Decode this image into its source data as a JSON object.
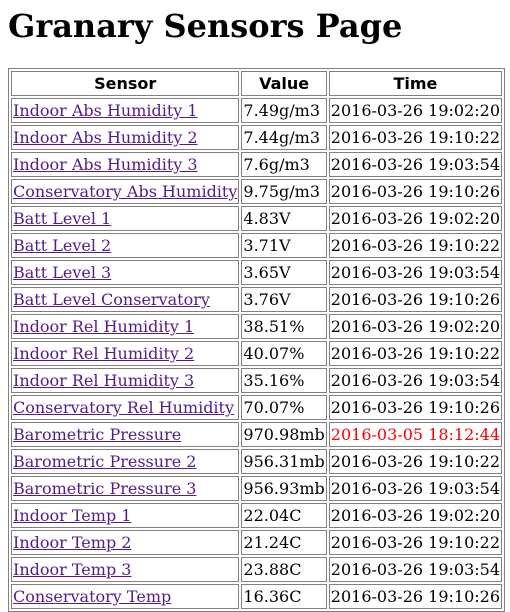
{
  "page": {
    "title": "Granary Sensors Page"
  },
  "table": {
    "headers": [
      "Sensor",
      "Value",
      "Time"
    ],
    "rows": [
      {
        "sensor": "Indoor Abs Humidity 1",
        "value": "7.49g/m3",
        "time": "2016-03-26 19:02:20",
        "stale": false
      },
      {
        "sensor": "Indoor Abs Humidity 2",
        "value": "7.44g/m3",
        "time": "2016-03-26 19:10:22",
        "stale": false
      },
      {
        "sensor": "Indoor Abs Humidity 3",
        "value": "7.6g/m3",
        "time": "2016-03-26 19:03:54",
        "stale": false
      },
      {
        "sensor": "Conservatory Abs Humidity",
        "value": "9.75g/m3",
        "time": "2016-03-26 19:10:26",
        "stale": false
      },
      {
        "sensor": "Batt Level 1",
        "value": "4.83V",
        "time": "2016-03-26 19:02:20",
        "stale": false
      },
      {
        "sensor": "Batt Level 2",
        "value": "3.71V",
        "time": "2016-03-26 19:10:22",
        "stale": false
      },
      {
        "sensor": "Batt Level 3",
        "value": "3.65V",
        "time": "2016-03-26 19:03:54",
        "stale": false
      },
      {
        "sensor": "Batt Level Conservatory",
        "value": "3.76V",
        "time": "2016-03-26 19:10:26",
        "stale": false
      },
      {
        "sensor": "Indoor Rel Humidity 1",
        "value": "38.51%",
        "time": "2016-03-26 19:02:20",
        "stale": false
      },
      {
        "sensor": "Indoor Rel Humidity 2",
        "value": "40.07%",
        "time": "2016-03-26 19:10:22",
        "stale": false
      },
      {
        "sensor": "Indoor Rel Humidity 3",
        "value": "35.16%",
        "time": "2016-03-26 19:03:54",
        "stale": false
      },
      {
        "sensor": "Conservatory Rel Humidity",
        "value": "70.07%",
        "time": "2016-03-26 19:10:26",
        "stale": false
      },
      {
        "sensor": "Barometric Pressure",
        "value": "970.98mb",
        "time": "2016-03-05 18:12:44",
        "stale": true
      },
      {
        "sensor": "Barometric Pressure 2",
        "value": "956.31mb",
        "time": "2016-03-26 19:10:22",
        "stale": false
      },
      {
        "sensor": "Barometric Pressure 3",
        "value": "956.93mb",
        "time": "2016-03-26 19:03:54",
        "stale": false
      },
      {
        "sensor": "Indoor Temp 1",
        "value": "22.04C",
        "time": "2016-03-26 19:02:20",
        "stale": false
      },
      {
        "sensor": "Indoor Temp 2",
        "value": "21.24C",
        "time": "2016-03-26 19:10:22",
        "stale": false
      },
      {
        "sensor": "Indoor Temp 3",
        "value": "23.88C",
        "time": "2016-03-26 19:03:54",
        "stale": false
      },
      {
        "sensor": "Conservatory Temp",
        "value": "16.36C",
        "time": "2016-03-26 19:10:26",
        "stale": false
      }
    ]
  },
  "colors": {
    "link": "#551a8b",
    "stale_time": "#ff0000",
    "border": "#808080"
  }
}
